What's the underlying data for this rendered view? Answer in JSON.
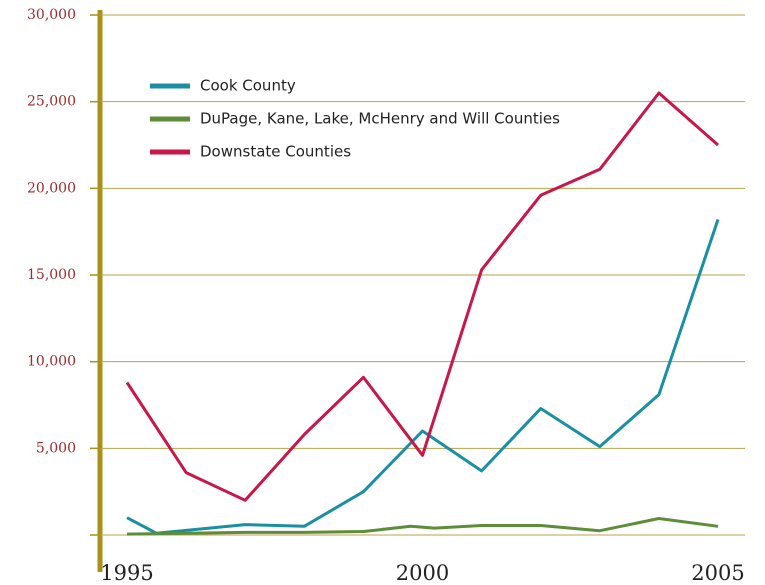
{
  "chart_data": {
    "type": "line",
    "series": [
      {
        "name": "Cook County",
        "color": "#1a8fa3",
        "x": [
          1995,
          1995.5,
          1997,
          1998,
          1999,
          2000,
          2001,
          2002,
          2003,
          2004,
          2005
        ],
        "values": [
          1000,
          100,
          600,
          500,
          2500,
          6000,
          3700,
          7300,
          5100,
          8100,
          18200
        ]
      },
      {
        "name": "DuPage, Kane, Lake, McHenry and Will Counties",
        "color": "#5e8d3a",
        "x": [
          1995,
          1996,
          1997,
          1998,
          1999,
          1999.8,
          2000.2,
          2001,
          2002,
          2003,
          2004,
          2005
        ],
        "values": [
          50,
          100,
          150,
          150,
          200,
          500,
          400,
          550,
          550,
          250,
          950,
          500
        ]
      },
      {
        "name": "Downstate Counties",
        "color": "#c8174a",
        "x": [
          1995,
          1996,
          1997,
          1998,
          1999,
          2000,
          2001,
          2002,
          2003,
          2004,
          2005
        ],
        "values": [
          8800,
          3600,
          2000,
          5800,
          9100,
          4600,
          15300,
          19600,
          21100,
          25500,
          22500
        ]
      }
    ],
    "xlim": [
      1995,
      2005
    ],
    "xticks": [
      1995,
      2000,
      2005
    ],
    "ylim": [
      0,
      30000
    ],
    "yticks": [
      {
        "value": 5000,
        "label": "5,000"
      },
      {
        "value": 10000,
        "label": "10,000"
      },
      {
        "value": 15000,
        "label": "15,000"
      },
      {
        "value": 20000,
        "label": "20,000"
      },
      {
        "value": 25000,
        "label": "25,000"
      },
      {
        "value": 30000,
        "label": "30,000"
      }
    ],
    "grid": true
  }
}
